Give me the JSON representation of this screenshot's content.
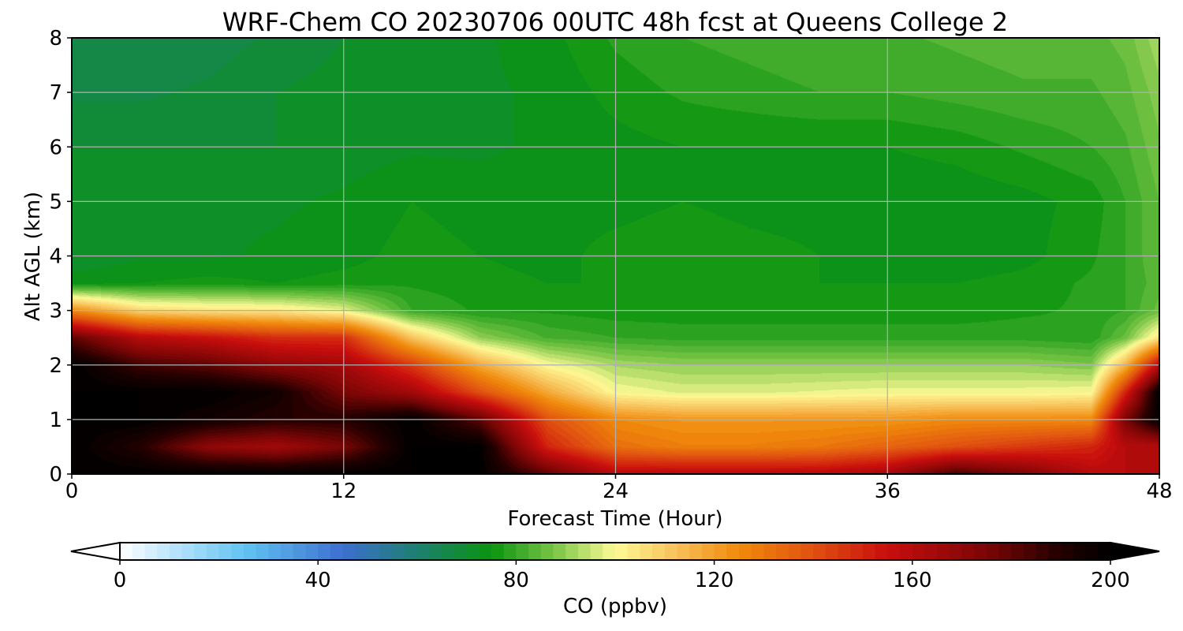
{
  "chart_data": {
    "type": "heatmap",
    "title": "WRF-Chem CO  20230706 00UTC 48h fcst at Queens College 2",
    "xlabel": "Forecast Time (Hour)",
    "ylabel": "Alt AGL (km)",
    "xlim": [
      0,
      48
    ],
    "ylim": [
      0,
      8
    ],
    "xticks": [
      0,
      12,
      24,
      36,
      48
    ],
    "yticks": [
      0,
      1,
      2,
      3,
      4,
      5,
      6,
      7,
      8
    ],
    "grid": true,
    "x": [
      0,
      3,
      6,
      9,
      12,
      15,
      18,
      21,
      24,
      27,
      30,
      33,
      36,
      39,
      42,
      45,
      46.5,
      48
    ],
    "y": [
      0,
      0.5,
      1,
      1.5,
      2,
      2.5,
      3,
      3.5,
      4,
      5,
      6,
      7,
      8
    ],
    "z": [
      [
        200,
        200,
        200,
        200,
        200,
        200,
        200,
        180,
        160,
        160,
        160,
        160,
        165,
        185,
        175,
        160,
        160,
        160
      ],
      [
        200,
        190,
        170,
        165,
        175,
        200,
        200,
        150,
        132,
        128,
        128,
        130,
        135,
        140,
        145,
        150,
        160,
        160
      ],
      [
        200,
        200,
        195,
        190,
        190,
        200,
        180,
        140,
        125,
        122,
        122,
        122,
        122,
        125,
        125,
        125,
        175,
        200
      ],
      [
        200,
        200,
        200,
        195,
        175,
        165,
        140,
        118,
        100,
        97,
        97,
        98,
        99,
        99,
        99,
        100,
        150,
        200
      ],
      [
        200,
        185,
        180,
        170,
        165,
        145,
        118,
        100,
        92,
        90,
        90,
        90,
        90,
        90,
        90,
        88,
        115,
        160
      ],
      [
        180,
        160,
        155,
        148,
        148,
        112,
        90,
        82,
        80,
        79,
        79,
        79,
        79,
        79,
        79,
        78,
        86,
        105
      ],
      [
        125,
        108,
        105,
        104,
        98,
        80,
        77,
        77,
        76,
        76,
        76,
        76,
        76,
        76,
        77,
        78,
        80,
        86
      ],
      [
        74,
        75,
        76,
        75,
        76,
        77,
        76,
        75,
        75,
        75,
        75,
        75,
        75,
        75,
        76,
        78,
        80,
        84
      ],
      [
        70,
        72,
        72,
        73,
        74,
        76,
        75,
        74,
        76,
        77,
        76,
        75,
        74,
        73,
        74,
        77,
        80,
        85
      ],
      [
        71,
        72,
        72,
        72,
        73,
        75,
        74,
        74,
        74,
        75,
        74,
        74,
        73,
        73,
        74,
        76,
        80,
        85
      ],
      [
        70,
        70,
        70,
        70,
        71,
        72,
        72,
        73,
        74,
        75,
        75,
        75,
        75,
        76,
        78,
        80,
        82,
        87
      ],
      [
        67,
        67,
        68,
        70,
        71,
        72,
        72,
        73,
        76,
        78,
        79,
        80,
        80,
        81,
        82,
        82,
        84,
        89
      ],
      [
        66,
        66,
        66,
        68,
        70,
        71,
        72,
        74,
        78,
        80,
        81,
        82,
        82,
        83,
        84,
        84,
        86,
        92
      ]
    ],
    "colorbar": {
      "label": "CO  (ppbv)",
      "range": [
        0,
        200
      ],
      "ticks": [
        0,
        40,
        80,
        120,
        160,
        200
      ],
      "extend": "both",
      "stops": [
        {
          "v": 0,
          "c": "#ffffff"
        },
        {
          "v": 10,
          "c": "#bfe6fb"
        },
        {
          "v": 25,
          "c": "#62c4f3"
        },
        {
          "v": 45,
          "c": "#3d6fd0"
        },
        {
          "v": 60,
          "c": "#1d7f70"
        },
        {
          "v": 75,
          "c": "#0a9410"
        },
        {
          "v": 88,
          "c": "#7cc648"
        },
        {
          "v": 100,
          "c": "#fffa96"
        },
        {
          "v": 112,
          "c": "#f8c35c"
        },
        {
          "v": 125,
          "c": "#f08a0a"
        },
        {
          "v": 140,
          "c": "#e05010"
        },
        {
          "v": 155,
          "c": "#c90d0d"
        },
        {
          "v": 175,
          "c": "#7a0505"
        },
        {
          "v": 190,
          "c": "#220000"
        },
        {
          "v": 200,
          "c": "#000000"
        }
      ]
    }
  }
}
